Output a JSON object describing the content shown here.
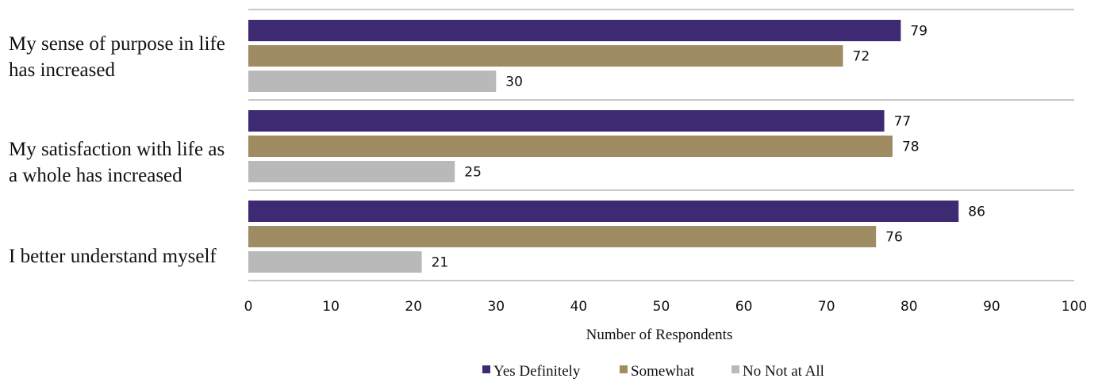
{
  "chart_data": {
    "type": "bar",
    "orientation": "horizontal",
    "categories": [
      [
        "My sense of purpose in life",
        "has increased"
      ],
      [
        "My satisfaction with life as",
        "a whole has increased"
      ],
      [
        "I better understand myself"
      ]
    ],
    "series": [
      {
        "name": "Yes Definitely",
        "color": "#3d2a72",
        "values": [
          79,
          77,
          86
        ]
      },
      {
        "name": "Somewhat",
        "color": "#a08c62",
        "values": [
          72,
          78,
          76
        ]
      },
      {
        "name": "No Not at All",
        "color": "#b9b9b9",
        "values": [
          30,
          25,
          21
        ]
      }
    ],
    "xlabel": "Number of Respondents",
    "xlim": [
      0,
      100
    ],
    "xticks": [
      0,
      10,
      20,
      30,
      40,
      50,
      60,
      70,
      80,
      90,
      100
    ],
    "legend_position": "bottom",
    "data_labels": true
  }
}
